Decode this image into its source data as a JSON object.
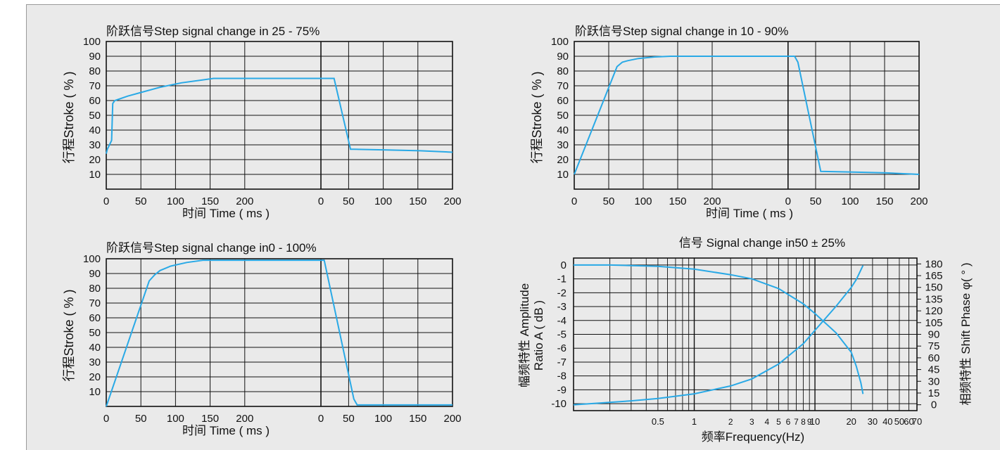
{
  "chart_data": [
    {
      "type": "line",
      "title": "阶跃信号Step signal change in 25 - 75%",
      "xlabel": "时间 Time ( ms )",
      "ylabel": "行程Stroke ( % )",
      "ylim": [
        0,
        100
      ],
      "yticks": [
        10,
        20,
        30,
        40,
        50,
        60,
        70,
        80,
        90,
        100
      ],
      "xtick_labels": [
        "0",
        "50",
        "100",
        "150",
        "200",
        "0",
        "50",
        "100",
        "150",
        "200"
      ],
      "grid": true,
      "line_color": "#29a9e6",
      "series": [
        {
          "segment": "step up",
          "x": [
            0,
            1,
            3,
            5,
            6,
            8,
            20,
            35,
            50,
            70,
            90,
            100,
            200
          ],
          "y": [
            24,
            27,
            30,
            33,
            58,
            60,
            63,
            66,
            69,
            72,
            74,
            75,
            75
          ]
        },
        {
          "segment": "step down",
          "x": [
            0,
            20,
            45,
            50,
            100,
            150,
            200
          ],
          "y": [
            75,
            75,
            27,
            27,
            26.5,
            26,
            25
          ]
        }
      ]
    },
    {
      "type": "line",
      "title": "阶跃信号Step signal change in 10 - 90%",
      "xlabel": "时间 Time ( ms )",
      "ylabel": "行程Stroke ( % )",
      "ylim": [
        0,
        100
      ],
      "yticks": [
        10,
        20,
        30,
        40,
        50,
        60,
        70,
        80,
        90,
        100
      ],
      "xtick_labels": [
        "0",
        "50",
        "100",
        "150",
        "200",
        "0",
        "50",
        "100",
        "150",
        "200"
      ],
      "grid": true,
      "line_color": "#29a9e6",
      "series": [
        {
          "segment": "step up",
          "x": [
            0,
            40,
            45,
            50,
            60,
            75,
            90,
            100,
            200
          ],
          "y": [
            10,
            83,
            86,
            87,
            88.5,
            89.5,
            90,
            90,
            90
          ]
        },
        {
          "segment": "step down",
          "x": [
            0,
            10,
            15,
            50,
            100,
            150,
            200
          ],
          "y": [
            90,
            90,
            86,
            12,
            11.5,
            11,
            10
          ]
        }
      ]
    },
    {
      "type": "line",
      "title": "阶跃信号Step signal change in0 - 100%",
      "xlabel": "时间 Time ( ms )",
      "ylabel": "行程Stroke ( % )",
      "ylim": [
        0,
        100
      ],
      "yticks": [
        10,
        20,
        30,
        40,
        50,
        60,
        70,
        80,
        90,
        100
      ],
      "xtick_labels": [
        "0",
        "50",
        "100",
        "150",
        "200",
        "0",
        "50",
        "100",
        "150",
        "200"
      ],
      "grid": true,
      "line_color": "#29a9e6",
      "series": [
        {
          "segment": "step up",
          "x": [
            0,
            40,
            45,
            50,
            60,
            75,
            90,
            100,
            200
          ],
          "y": [
            0,
            85,
            89,
            92,
            95,
            97.5,
            99,
            99,
            99
          ]
        },
        {
          "segment": "step down",
          "x": [
            0,
            5,
            50,
            55,
            100,
            150,
            200
          ],
          "y": [
            99,
            99,
            5,
            1,
            1,
            1,
            1
          ]
        }
      ]
    },
    {
      "type": "line",
      "title": "信号 Signal change in50 ± 25%",
      "xlabel": "频率Frequency(Hz)",
      "ylabel": "幅频特性 Amplitude Ratio A ( dB )",
      "y2label": "相频特性 Shift Phase φ( ° )",
      "xscale": "log",
      "xlim": [
        0.1,
        70
      ],
      "xtick_labels": [
        "0.5",
        "1",
        "2",
        "3",
        "4",
        "5",
        "6",
        "7",
        "8",
        "9",
        "10",
        "20",
        "30",
        "40",
        "50",
        "60",
        "70"
      ],
      "xtick_values": [
        0.5,
        1,
        2,
        3,
        4,
        5,
        6,
        7,
        8,
        9,
        10,
        20,
        30,
        40,
        50,
        60,
        70
      ],
      "ylim": [
        -10.5,
        0.5
      ],
      "yticks": [
        0,
        -1,
        -2,
        -3,
        -4,
        -5,
        -6,
        -7,
        -8,
        -9,
        -10
      ],
      "y2lim": [
        -7.5,
        187.5
      ],
      "y2ticks": [
        180,
        165,
        150,
        135,
        120,
        105,
        90,
        75,
        60,
        45,
        30,
        15,
        0
      ],
      "grid": true,
      "line_color": "#29a9e6",
      "series": [
        {
          "name": "amplitude",
          "axis": "left",
          "x": [
            0.1,
            0.2,
            0.5,
            1,
            2,
            3,
            5,
            8,
            10,
            15,
            20,
            22,
            24,
            25
          ],
          "y": [
            0,
            0,
            -0.1,
            -0.3,
            -0.7,
            -1,
            -1.7,
            -2.8,
            -3.5,
            -4.9,
            -6.3,
            -7.3,
            -8.5,
            -9.3
          ]
        },
        {
          "name": "phase",
          "axis": "right",
          "x": [
            0.1,
            0.3,
            0.5,
            1,
            2,
            3,
            5,
            8,
            10,
            15,
            20,
            22,
            25
          ],
          "y": [
            0,
            5,
            8,
            14,
            24,
            33,
            52,
            78,
            95,
            126,
            150,
            160,
            178
          ]
        }
      ]
    }
  ]
}
